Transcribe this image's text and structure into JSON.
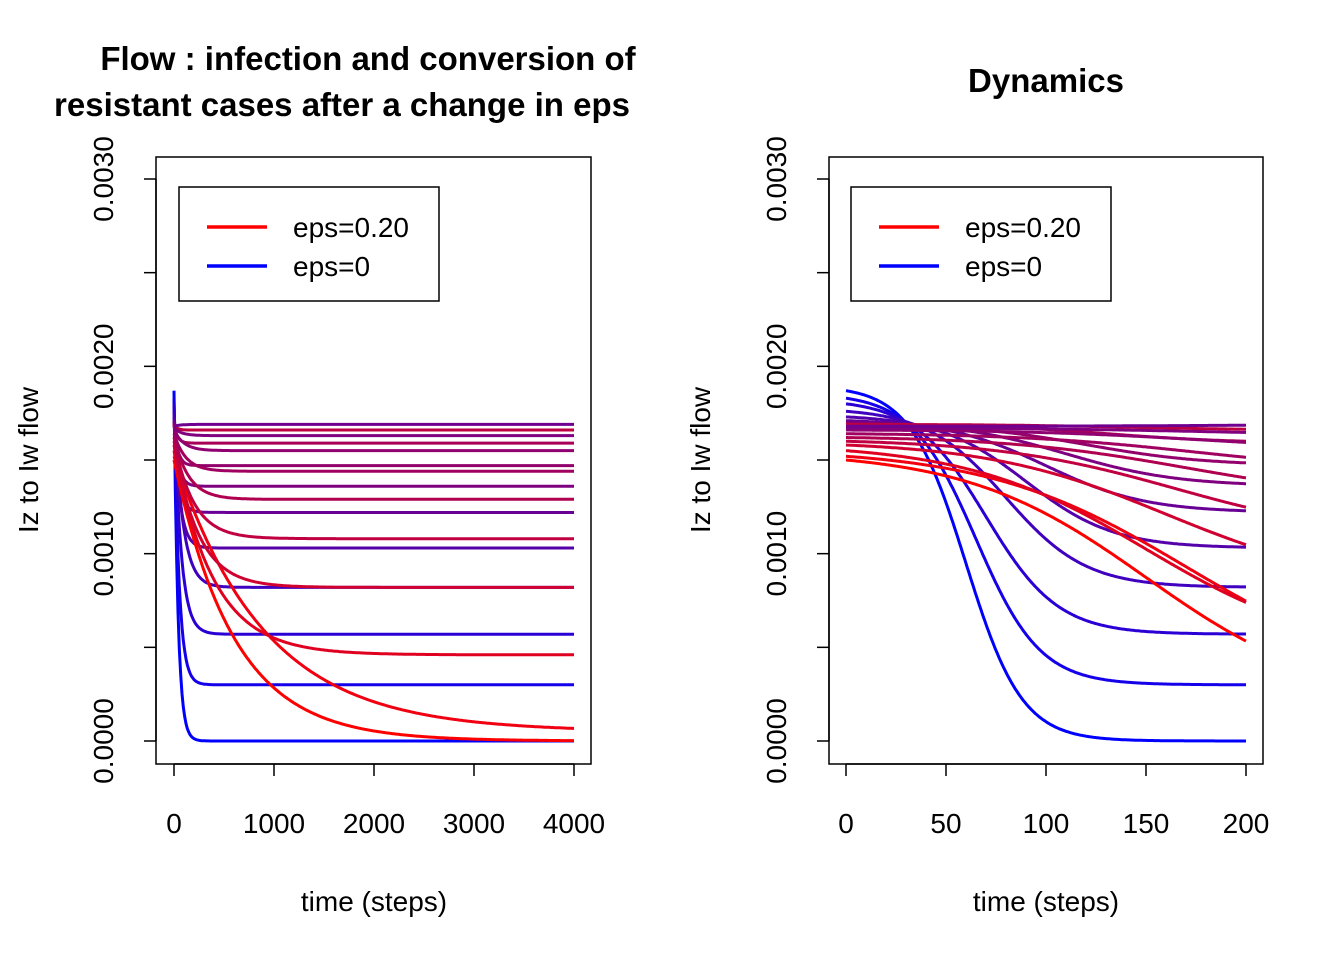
{
  "chart_data": [
    {
      "type": "line",
      "title_lines": [
        "Flow : infection and conversion of",
        "resistant cases after a change in eps"
      ],
      "xlabel": "time (steps)",
      "ylabel": "Iz to Iw flow",
      "xlim": [
        0,
        4000
      ],
      "ylim": [
        0,
        0.003
      ],
      "xticks": [
        "0",
        "1000",
        "2000",
        "3000",
        "4000"
      ],
      "yticks": [
        "0.0000",
        "0.0010",
        "0.0020",
        "0.0030"
      ],
      "legend": {
        "position": "top-left",
        "entries": [
          {
            "label": "eps=0.20",
            "color": "#ff0000"
          },
          {
            "label": "eps=0",
            "color": "#0000ff"
          }
        ]
      },
      "series": [
        {
          "start": 0.00187,
          "end": 0.0,
          "tau": 40,
          "color": "#0000ff"
        },
        {
          "start": 0.00183,
          "end": 0.0003,
          "tau": 50,
          "color": "#1500ea"
        },
        {
          "start": 0.0018,
          "end": 0.00057,
          "tau": 70,
          "color": "#2a00d5"
        },
        {
          "start": 0.00176,
          "end": 0.00082,
          "tau": 90,
          "color": "#3f00c0"
        },
        {
          "start": 0.00173,
          "end": 0.00103,
          "tau": 60,
          "color": "#5400ab"
        },
        {
          "start": 0.00171,
          "end": 0.00122,
          "tau": 50,
          "color": "#690096"
        },
        {
          "start": 0.0017,
          "end": 0.00136,
          "tau": 45,
          "color": "#7e0081"
        },
        {
          "start": 0.00169,
          "end": 0.00147,
          "tau": 40,
          "color": "#93006c"
        },
        {
          "start": 0.00169,
          "end": 0.00159,
          "tau": 35,
          "color": "#a80057"
        },
        {
          "start": 0.00169,
          "end": 0.00166,
          "tau": 30,
          "color": "#bd0042"
        },
        {
          "start": 0.0015,
          "end": 0.0,
          "tau": 600,
          "color": "#ff0000"
        },
        {
          "start": 0.00152,
          "end": 5e-05,
          "tau": 900,
          "color": "#f00010"
        },
        {
          "start": 0.00155,
          "end": 0.00046,
          "tau": 400,
          "color": "#e00020"
        },
        {
          "start": 0.00158,
          "end": 0.00082,
          "tau": 250,
          "color": "#d00030"
        },
        {
          "start": 0.0016,
          "end": 0.00108,
          "tau": 200,
          "color": "#c00040"
        },
        {
          "start": 0.00162,
          "end": 0.00129,
          "tau": 150,
          "color": "#b00050"
        },
        {
          "start": 0.00164,
          "end": 0.00144,
          "tau": 120,
          "color": "#a00060"
        },
        {
          "start": 0.00166,
          "end": 0.00155,
          "tau": 100,
          "color": "#900070"
        },
        {
          "start": 0.00167,
          "end": 0.00163,
          "tau": 80,
          "color": "#800080"
        },
        {
          "start": 0.00168,
          "end": 0.00169,
          "tau": 60,
          "color": "#700090"
        }
      ]
    },
    {
      "type": "line",
      "title_lines": [
        "Dynamics"
      ],
      "xlabel": "time (steps)",
      "ylabel": "Iz to Iw flow",
      "xlim": [
        0,
        200
      ],
      "ylim": [
        0,
        0.003
      ],
      "xticks": [
        "0",
        "50",
        "100",
        "150",
        "200"
      ],
      "yticks": [
        "0.0000",
        "0.0010",
        "0.0020",
        "0.0030"
      ],
      "legend": {
        "position": "top-left",
        "entries": [
          {
            "label": "eps=0.20",
            "color": "#ff0000"
          },
          {
            "label": "eps=0",
            "color": "#0000ff"
          }
        ]
      },
      "series": [
        {
          "start": 0.00187,
          "end": 0.0,
          "mid": 60,
          "w": 14,
          "color": "#0000ff"
        },
        {
          "start": 0.00183,
          "end": 0.0003,
          "mid": 65,
          "w": 16,
          "color": "#1500ea"
        },
        {
          "start": 0.0018,
          "end": 0.00057,
          "mid": 70,
          "w": 18,
          "color": "#2a00d5"
        },
        {
          "start": 0.00176,
          "end": 0.00082,
          "mid": 80,
          "w": 20,
          "color": "#3f00c0"
        },
        {
          "start": 0.00173,
          "end": 0.00103,
          "mid": 90,
          "w": 22,
          "color": "#5400ab"
        },
        {
          "start": 0.00171,
          "end": 0.00122,
          "mid": 100,
          "w": 25,
          "color": "#690096"
        },
        {
          "start": 0.0017,
          "end": 0.00136,
          "mid": 110,
          "w": 28,
          "color": "#7e0081"
        },
        {
          "start": 0.00169,
          "end": 0.00147,
          "mid": 120,
          "w": 30,
          "color": "#93006c"
        },
        {
          "start": 0.00169,
          "end": 0.00159,
          "mid": 130,
          "w": 32,
          "color": "#a80057"
        },
        {
          "start": 0.00169,
          "end": 0.00166,
          "mid": 140,
          "w": 34,
          "color": "#bd0042"
        },
        {
          "start": 0.0015,
          "end": 0.0002,
          "mid": 150,
          "w": 45,
          "color": "#ff0000"
        },
        {
          "start": 0.00152,
          "end": 0.0003,
          "mid": 170,
          "w": 50,
          "color": "#f00010"
        },
        {
          "start": 0.00155,
          "end": 0.00046,
          "mid": 150,
          "w": 45,
          "color": "#e00020"
        },
        {
          "start": 0.00158,
          "end": 0.00082,
          "mid": 160,
          "w": 45,
          "color": "#d00030"
        },
        {
          "start": 0.0016,
          "end": 0.00108,
          "mid": 165,
          "w": 45,
          "color": "#c00040"
        },
        {
          "start": 0.00162,
          "end": 0.00129,
          "mid": 170,
          "w": 45,
          "color": "#b00050"
        },
        {
          "start": 0.00164,
          "end": 0.00144,
          "mid": 175,
          "w": 45,
          "color": "#a00060"
        },
        {
          "start": 0.00166,
          "end": 0.00155,
          "mid": 180,
          "w": 45,
          "color": "#900070"
        },
        {
          "start": 0.00167,
          "end": 0.00163,
          "mid": 185,
          "w": 45,
          "color": "#800080"
        },
        {
          "start": 0.00168,
          "end": 0.00169,
          "mid": 190,
          "w": 45,
          "color": "#700090"
        }
      ]
    }
  ]
}
